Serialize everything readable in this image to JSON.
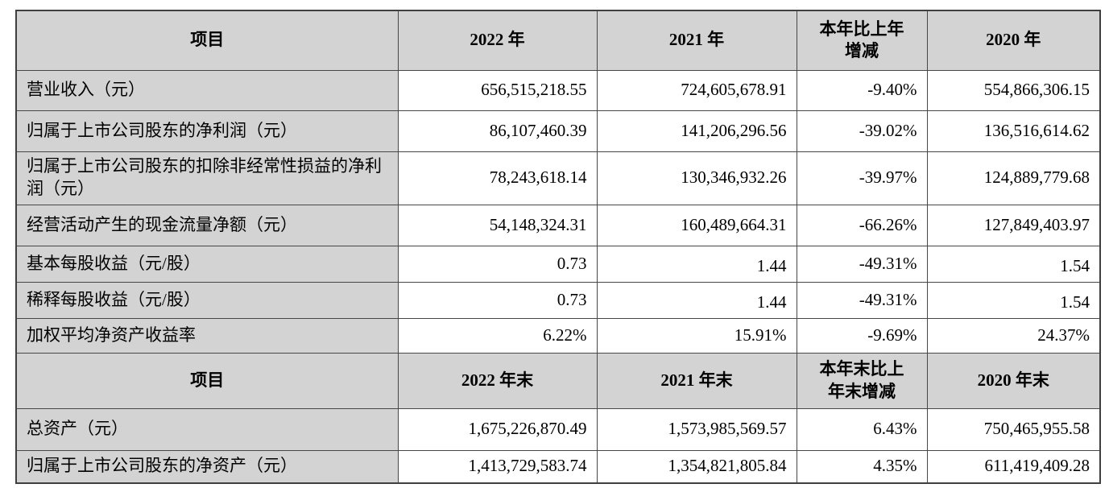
{
  "colors": {
    "header_bg": "#d3d3d3",
    "label_bg": "#d3d3d3",
    "data_bg": "#ffffff",
    "border": "#3f3f3f",
    "text": "#000000"
  },
  "t1": {
    "headers": [
      "项目",
      "2022 年",
      "2021 年",
      "本年比上年\n增减",
      "2020 年"
    ],
    "rows": [
      [
        "营业收入（元）",
        "656,515,218.55",
        "724,605,678.91",
        "-9.40%",
        "554,866,306.15"
      ],
      [
        "归属于上市公司股东的净利润（元）",
        "86,107,460.39",
        "141,206,296.56",
        "-39.02%",
        "136,516,614.62"
      ],
      [
        "归属于上市公司股东的扣除非经常性损益的净利润（元）",
        "78,243,618.14",
        "130,346,932.26",
        "-39.97%",
        "124,889,779.68"
      ],
      [
        "经营活动产生的现金流量净额（元）",
        "54,148,324.31",
        "160,489,664.31",
        "-66.26%",
        "127,849,403.97"
      ],
      [
        "基本每股收益（元/股）",
        "0.73",
        "1.44",
        "-49.31%",
        "1.54"
      ],
      [
        "稀释每股收益（元/股）",
        "0.73",
        "1.44",
        "-49.31%",
        "1.54"
      ],
      [
        "加权平均净资产收益率",
        "6.22%",
        "15.91%",
        "-9.69%",
        "24.37%"
      ]
    ]
  },
  "t2": {
    "headers": [
      "项目",
      "2022 年末",
      "2021 年末",
      "本年末比上\n年末增减",
      "2020 年末"
    ],
    "rows": [
      [
        "总资产（元）",
        "1,675,226,870.49",
        "1,573,985,569.57",
        "6.43%",
        "750,465,955.58"
      ],
      [
        "归属于上市公司股东的净资产（元）",
        "1,413,729,583.74",
        "1,354,821,805.84",
        "4.35%",
        "611,419,409.28"
      ]
    ]
  }
}
